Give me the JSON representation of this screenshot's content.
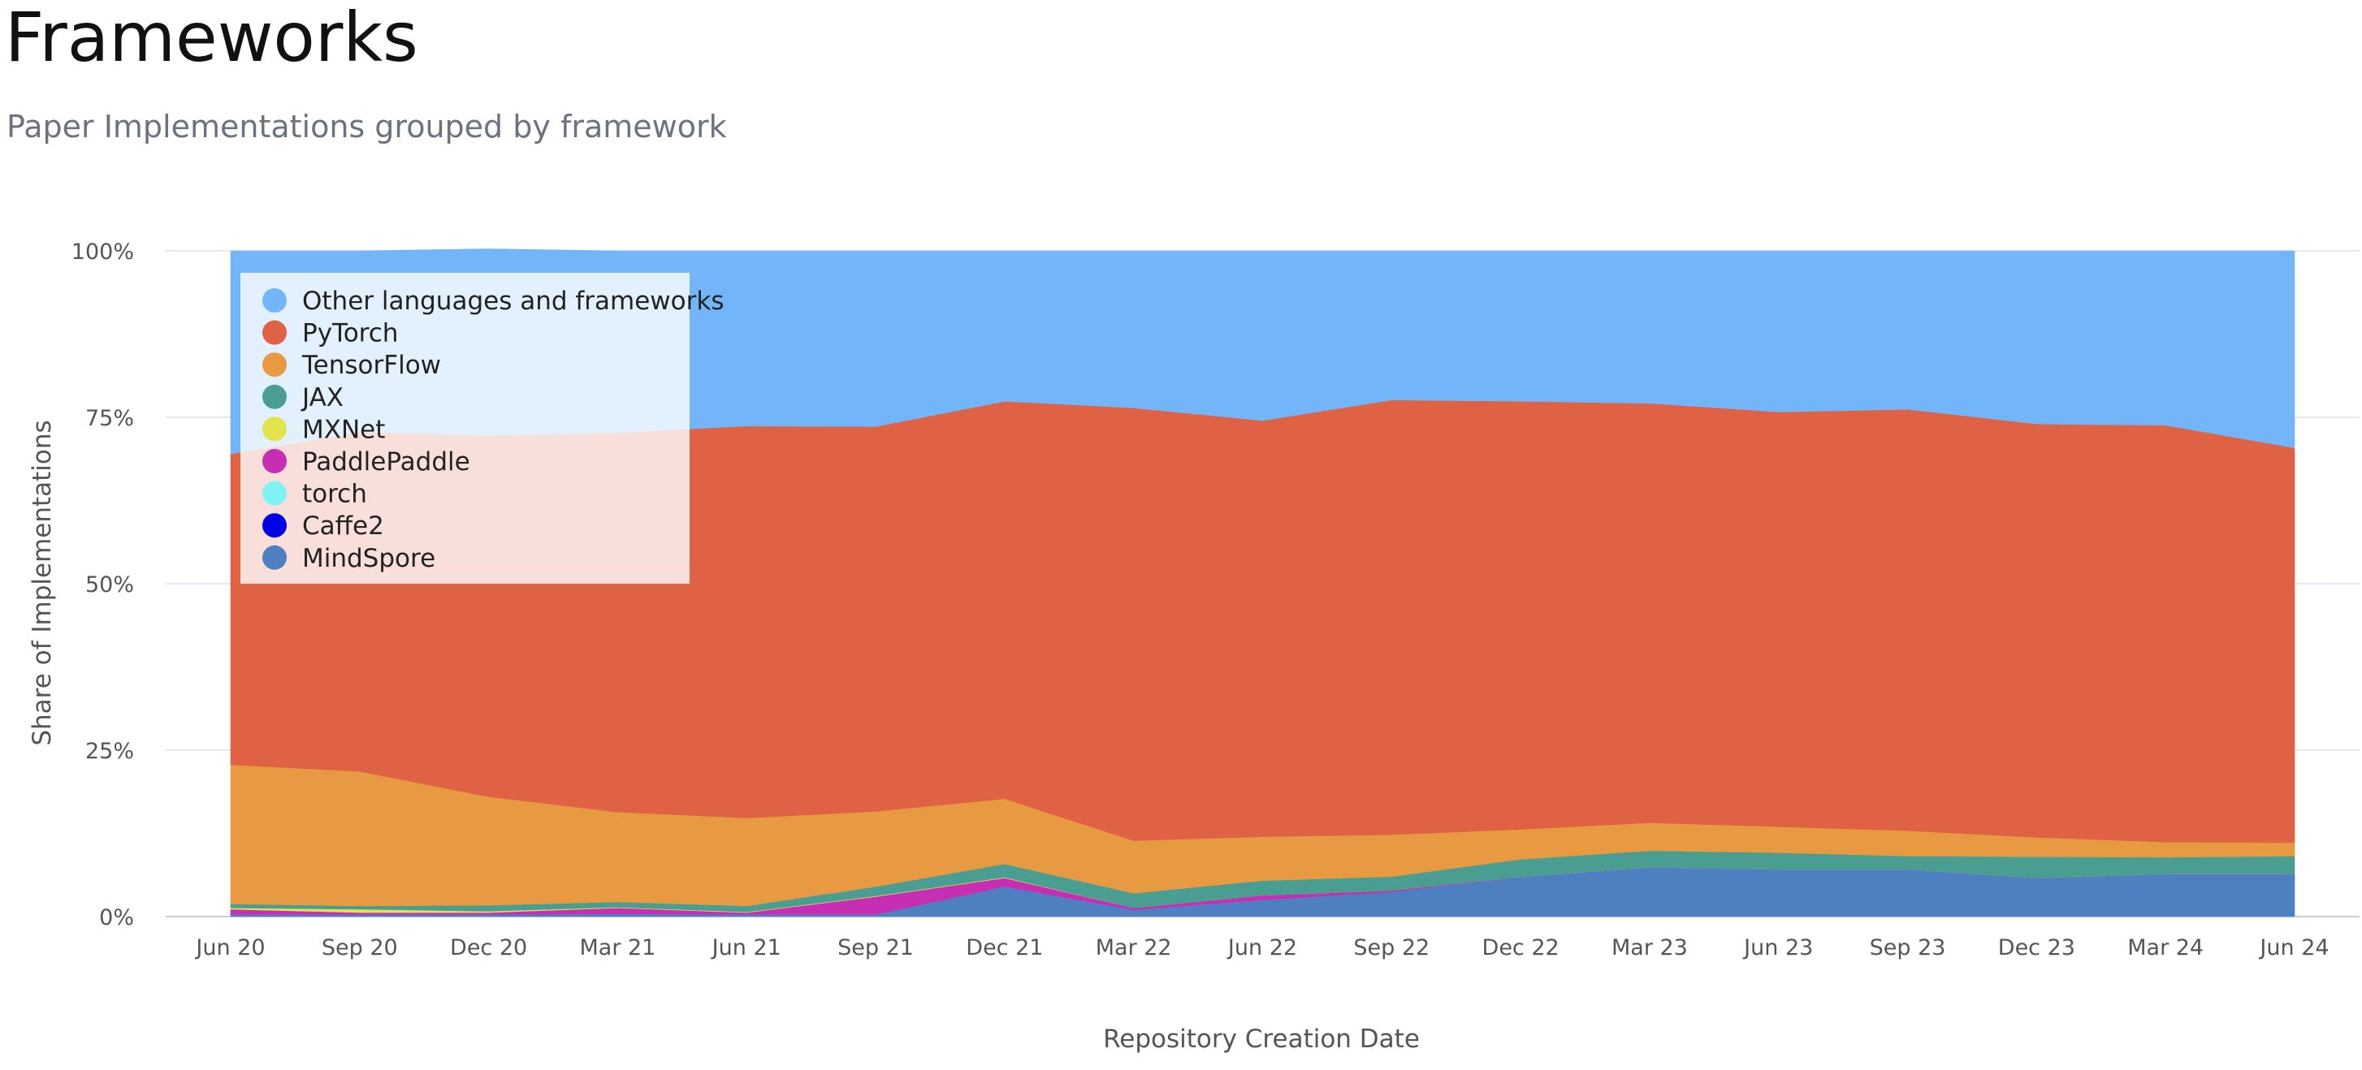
{
  "page": {
    "title": "Frameworks",
    "subtitle": "Paper Implementations grouped by framework"
  },
  "chart_data": {
    "type": "area",
    "stacked": true,
    "normalized": true,
    "xlabel": "Repository Creation Date",
    "ylabel": "Share of Implementations",
    "categories": [
      "Jun 20",
      "Sep 20",
      "Dec 20",
      "Mar 21",
      "Jun 21",
      "Sep 21",
      "Dec 21",
      "Mar 22",
      "Jun 22",
      "Sep 22",
      "Dec 22",
      "Mar 23",
      "Jun 23",
      "Sep 23",
      "Dec 23",
      "Mar 24",
      "Jun 24"
    ],
    "y_ticks": [
      "0%",
      "25%",
      "50%",
      "75%",
      "100%"
    ],
    "ylim": [
      0,
      100
    ],
    "grid": "horizontal",
    "legend_position": "top-left",
    "series": [
      {
        "name": "MindSpore",
        "color": "#4e80c1",
        "values": [
          0.3,
          0.3,
          0.3,
          0.4,
          0.3,
          0.3,
          4.5,
          1.0,
          2.5,
          3.7,
          6.0,
          7.4,
          7.1,
          7.1,
          5.8,
          6.4,
          6.4
        ]
      },
      {
        "name": "Caffe2",
        "color": "#0000e6",
        "values": [
          0,
          0,
          0,
          0,
          0,
          0,
          0,
          0,
          0,
          0,
          0,
          0,
          0,
          0,
          0,
          0,
          0
        ]
      },
      {
        "name": "torch",
        "color": "#7ff3f3",
        "values": [
          0,
          0,
          0,
          0,
          0,
          0,
          0,
          0,
          0,
          0,
          0,
          0,
          0,
          0,
          0,
          0,
          0
        ]
      },
      {
        "name": "PaddlePaddle",
        "color": "#c62fb4",
        "values": [
          0.8,
          0.3,
          0.3,
          0.9,
          0.3,
          2.7,
          1.3,
          0.3,
          0.7,
          0.2,
          0,
          0,
          0,
          0,
          0,
          0,
          0
        ]
      },
      {
        "name": "MXNet",
        "color": "#e3e34b",
        "values": [
          0.2,
          0.5,
          0.2,
          0.1,
          0.1,
          0.1,
          0.1,
          0,
          0,
          0,
          0,
          0,
          0,
          0,
          0,
          0,
          0
        ]
      },
      {
        "name": "JAX",
        "color": "#4a9e91",
        "values": [
          0.6,
          0.5,
          0.9,
          0.8,
          0.9,
          1.4,
          2.0,
          2.2,
          2.2,
          2.1,
          2.6,
          2.5,
          2.5,
          2.0,
          3.2,
          2.5,
          2.7
        ]
      },
      {
        "name": "TensorFlow",
        "color": "#e89a42",
        "values": [
          20.9,
          20.2,
          16.3,
          13.5,
          13.2,
          11.3,
          9.8,
          7.9,
          6.6,
          6.3,
          4.5,
          4.2,
          3.9,
          3.8,
          2.9,
          2.3,
          2.0
        ]
      },
      {
        "name": "PyTorch",
        "color": "#df6244",
        "values": [
          46.7,
          51.0,
          54.3,
          57.0,
          58.9,
          57.8,
          59.7,
          65.0,
          62.5,
          65.3,
          64.3,
          63.0,
          62.3,
          63.3,
          62.1,
          62.6,
          59.3
        ]
      },
      {
        "name": "Other languages and frameworks",
        "color": "#72b6f9",
        "values": [
          30.5,
          27.2,
          28.0,
          27.3,
          26.3,
          26.4,
          22.6,
          23.6,
          25.5,
          22.4,
          22.6,
          22.9,
          24.2,
          23.8,
          26.0,
          26.2,
          29.6
        ]
      }
    ],
    "legend_order": [
      "Other languages and frameworks",
      "PyTorch",
      "TensorFlow",
      "JAX",
      "MXNet",
      "PaddlePaddle",
      "torch",
      "Caffe2",
      "MindSpore"
    ]
  }
}
